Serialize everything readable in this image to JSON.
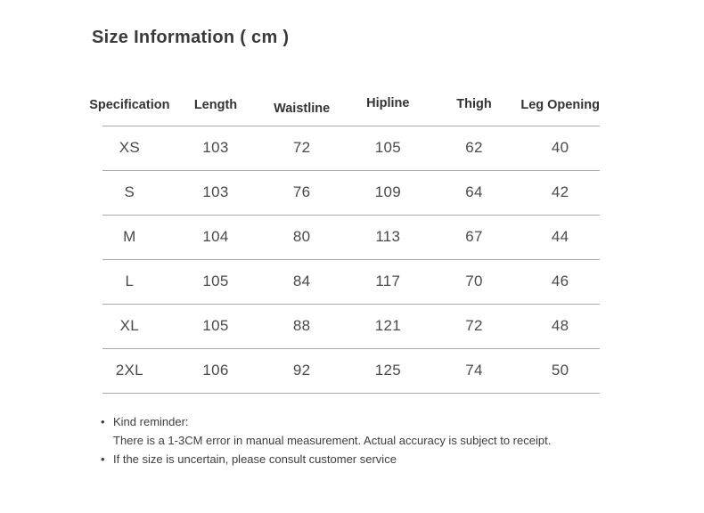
{
  "title": "Size Information ( cm )",
  "table": {
    "headers": [
      "Specification",
      "Length",
      "Waistline",
      "Hipline",
      "Thigh",
      "Leg Opening"
    ],
    "rows": [
      {
        "size": "XS",
        "values": [
          "103",
          "72",
          "105",
          "62",
          "40"
        ]
      },
      {
        "size": "S",
        "values": [
          "103",
          "76",
          "109",
          "64",
          "42"
        ]
      },
      {
        "size": "M",
        "values": [
          "104",
          "80",
          "113",
          "67",
          "44"
        ]
      },
      {
        "size": "L",
        "values": [
          "105",
          "84",
          "117",
          "70",
          "46"
        ]
      },
      {
        "size": "XL",
        "values": [
          "105",
          "88",
          "121",
          "72",
          "48"
        ]
      },
      {
        "size": "2XL",
        "values": [
          "106",
          "92",
          "125",
          "74",
          "50"
        ]
      }
    ]
  },
  "notes": {
    "reminder_title": "Kind reminder:",
    "reminder_body": "There is a 1-3CM error in manual measurement. Actual accuracy is subject to receipt.",
    "consult": "If the size is uncertain, please consult customer service"
  },
  "colors": {
    "heading_text": "#3a3a3a",
    "body_text": "#4a4a4a",
    "rule_line": "#a9a9a9",
    "background": "#ffffff"
  }
}
